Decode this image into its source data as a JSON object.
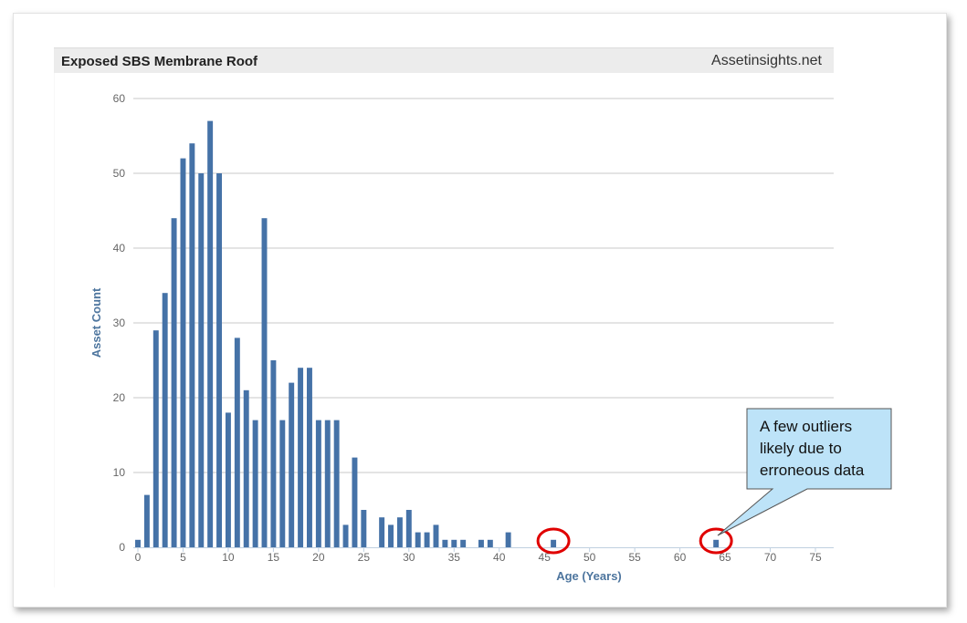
{
  "chart_data": {
    "type": "bar",
    "title": "Exposed SBS Membrane Roof",
    "source_label": "Assetinsights.net",
    "xlabel": "Age (Years)",
    "ylabel": "Asset Count",
    "xlim": [
      0,
      75
    ],
    "ylim": [
      0,
      60
    ],
    "x_ticks": [
      0,
      5,
      10,
      15,
      20,
      25,
      30,
      35,
      40,
      45,
      50,
      55,
      60,
      65,
      70,
      75
    ],
    "y_ticks": [
      0,
      10,
      20,
      30,
      40,
      50,
      60
    ],
    "grid": true,
    "series": [
      {
        "color": "#4572a7",
        "points": [
          [
            0,
            1
          ],
          [
            1,
            7
          ],
          [
            2,
            29
          ],
          [
            3,
            34
          ],
          [
            4,
            44
          ],
          [
            5,
            52
          ],
          [
            6,
            54
          ],
          [
            7,
            50
          ],
          [
            8,
            57
          ],
          [
            9,
            50
          ],
          [
            10,
            18
          ],
          [
            11,
            28
          ],
          [
            12,
            21
          ],
          [
            13,
            17
          ],
          [
            14,
            44
          ],
          [
            15,
            25
          ],
          [
            16,
            17
          ],
          [
            17,
            22
          ],
          [
            18,
            24
          ],
          [
            19,
            24
          ],
          [
            20,
            17
          ],
          [
            21,
            17
          ],
          [
            22,
            17
          ],
          [
            23,
            3
          ],
          [
            24,
            12
          ],
          [
            25,
            5
          ],
          [
            27,
            4
          ],
          [
            28,
            3
          ],
          [
            29,
            4
          ],
          [
            30,
            5
          ],
          [
            31,
            2
          ],
          [
            32,
            2
          ],
          [
            33,
            3
          ],
          [
            34,
            1
          ],
          [
            35,
            1
          ],
          [
            36,
            1
          ],
          [
            38,
            1
          ],
          [
            39,
            1
          ],
          [
            41,
            2
          ],
          [
            46,
            1
          ],
          [
            64,
            1
          ]
        ]
      }
    ],
    "annotation": {
      "lines": [
        "A few outliers",
        "likely due to",
        "erroneous data"
      ],
      "highlighted_x": [
        46,
        64
      ],
      "highlight_color": "#e00000",
      "box_color": "#bde3f8"
    }
  }
}
